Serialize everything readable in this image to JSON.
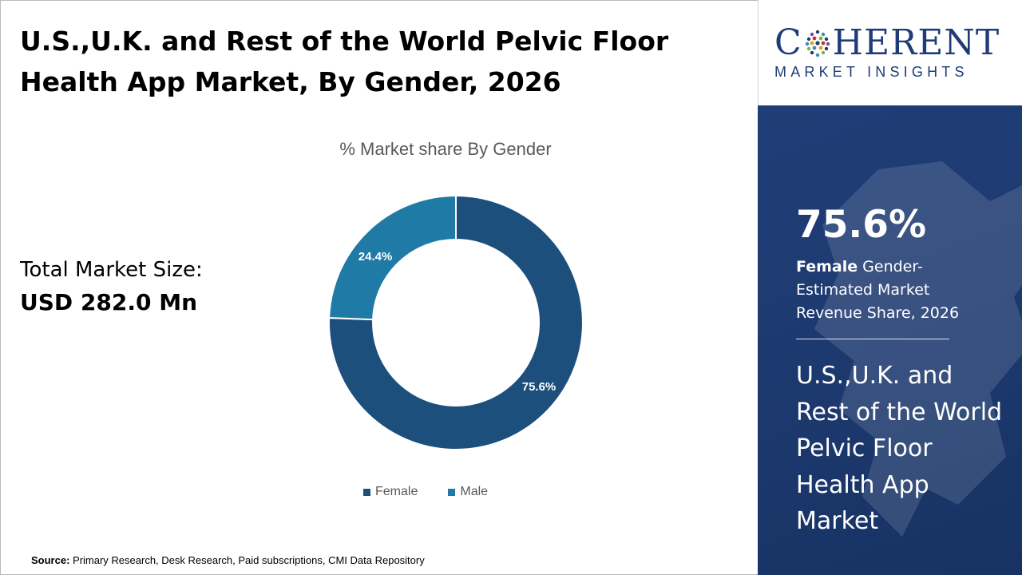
{
  "title": "U.S.,U.K. and Rest of the World Pelvic Floor Health App Market, By Gender, 2026",
  "total_market": {
    "label": "Total Market Size:",
    "value": "USD 282.0 Mn"
  },
  "source": {
    "prefix": "Source:",
    "text": " Primary Research, Desk Research, Paid subscriptions, CMI Data Repository"
  },
  "brand": {
    "name_left": "C",
    "name_right": "HERENT",
    "subtitle": "MARKET INSIGHTS",
    "color": "#1f3c78"
  },
  "highlight": {
    "value": "75.6%",
    "bold": "Female",
    "description": " Gender-Estimated Market Revenue Share, 2026",
    "market_name": "U.S.,U.K. and Rest of the World Pelvic Floor Health App Market"
  },
  "chart_data": {
    "type": "pie",
    "variant": "donut",
    "title": "% Market share By Gender",
    "categories": [
      "Female",
      "Male"
    ],
    "values": [
      75.6,
      24.4
    ],
    "labels": [
      "75.6%",
      "24.4%"
    ],
    "colors": [
      "#1c4f7b",
      "#1f7ba6"
    ],
    "legend_position": "bottom"
  }
}
